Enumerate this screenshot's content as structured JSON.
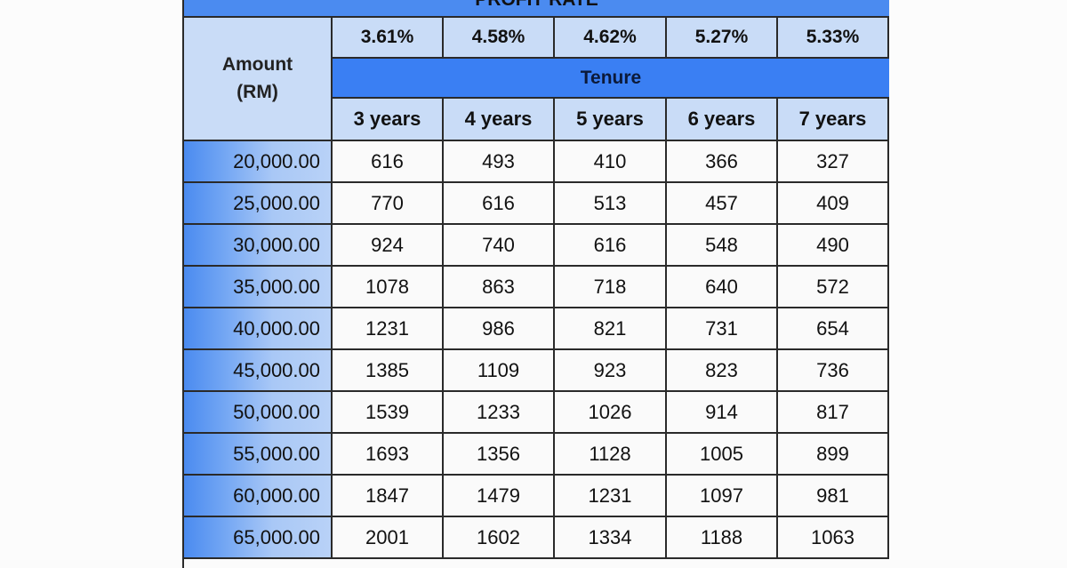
{
  "table": {
    "banner_title": "PROFIT RATE",
    "amount_header_line1": "Amount",
    "amount_header_line2": "(RM)",
    "rates": [
      "3.61%",
      "4.58%",
      "4.62%",
      "5.27%",
      "5.33%"
    ],
    "tenure_label": "Tenure",
    "tenures": [
      "3 years",
      "4 years",
      "5 years",
      "6 years",
      "7 years"
    ],
    "rows": [
      {
        "amount": "20,000.00",
        "values": [
          "616",
          "493",
          "410",
          "366",
          "327"
        ]
      },
      {
        "amount": "25,000.00",
        "values": [
          "770",
          "616",
          "513",
          "457",
          "409"
        ]
      },
      {
        "amount": "30,000.00",
        "values": [
          "924",
          "740",
          "616",
          "548",
          "490"
        ]
      },
      {
        "amount": "35,000.00",
        "values": [
          "1078",
          "863",
          "718",
          "640",
          "572"
        ]
      },
      {
        "amount": "40,000.00",
        "values": [
          "1231",
          "986",
          "821",
          "731",
          "654"
        ]
      },
      {
        "amount": "45,000.00",
        "values": [
          "1385",
          "1109",
          "923",
          "823",
          "736"
        ]
      },
      {
        "amount": "50,000.00",
        "values": [
          "1539",
          "1233",
          "1026",
          "914",
          "817"
        ]
      },
      {
        "amount": "55,000.00",
        "values": [
          "1693",
          "1356",
          "1128",
          "1005",
          "899"
        ]
      },
      {
        "amount": "60,000.00",
        "values": [
          "1847",
          "1479",
          "1231",
          "1097",
          "981"
        ]
      },
      {
        "amount": "65,000.00",
        "values": [
          "2001",
          "1602",
          "1334",
          "1188",
          "1063"
        ]
      }
    ]
  },
  "colors": {
    "banner_blue": "#4b8bf0",
    "tenure_blue": "#3a7ff3",
    "header_light_blue": "#c9dcf7",
    "grid_line": "#2a2a2a"
  }
}
